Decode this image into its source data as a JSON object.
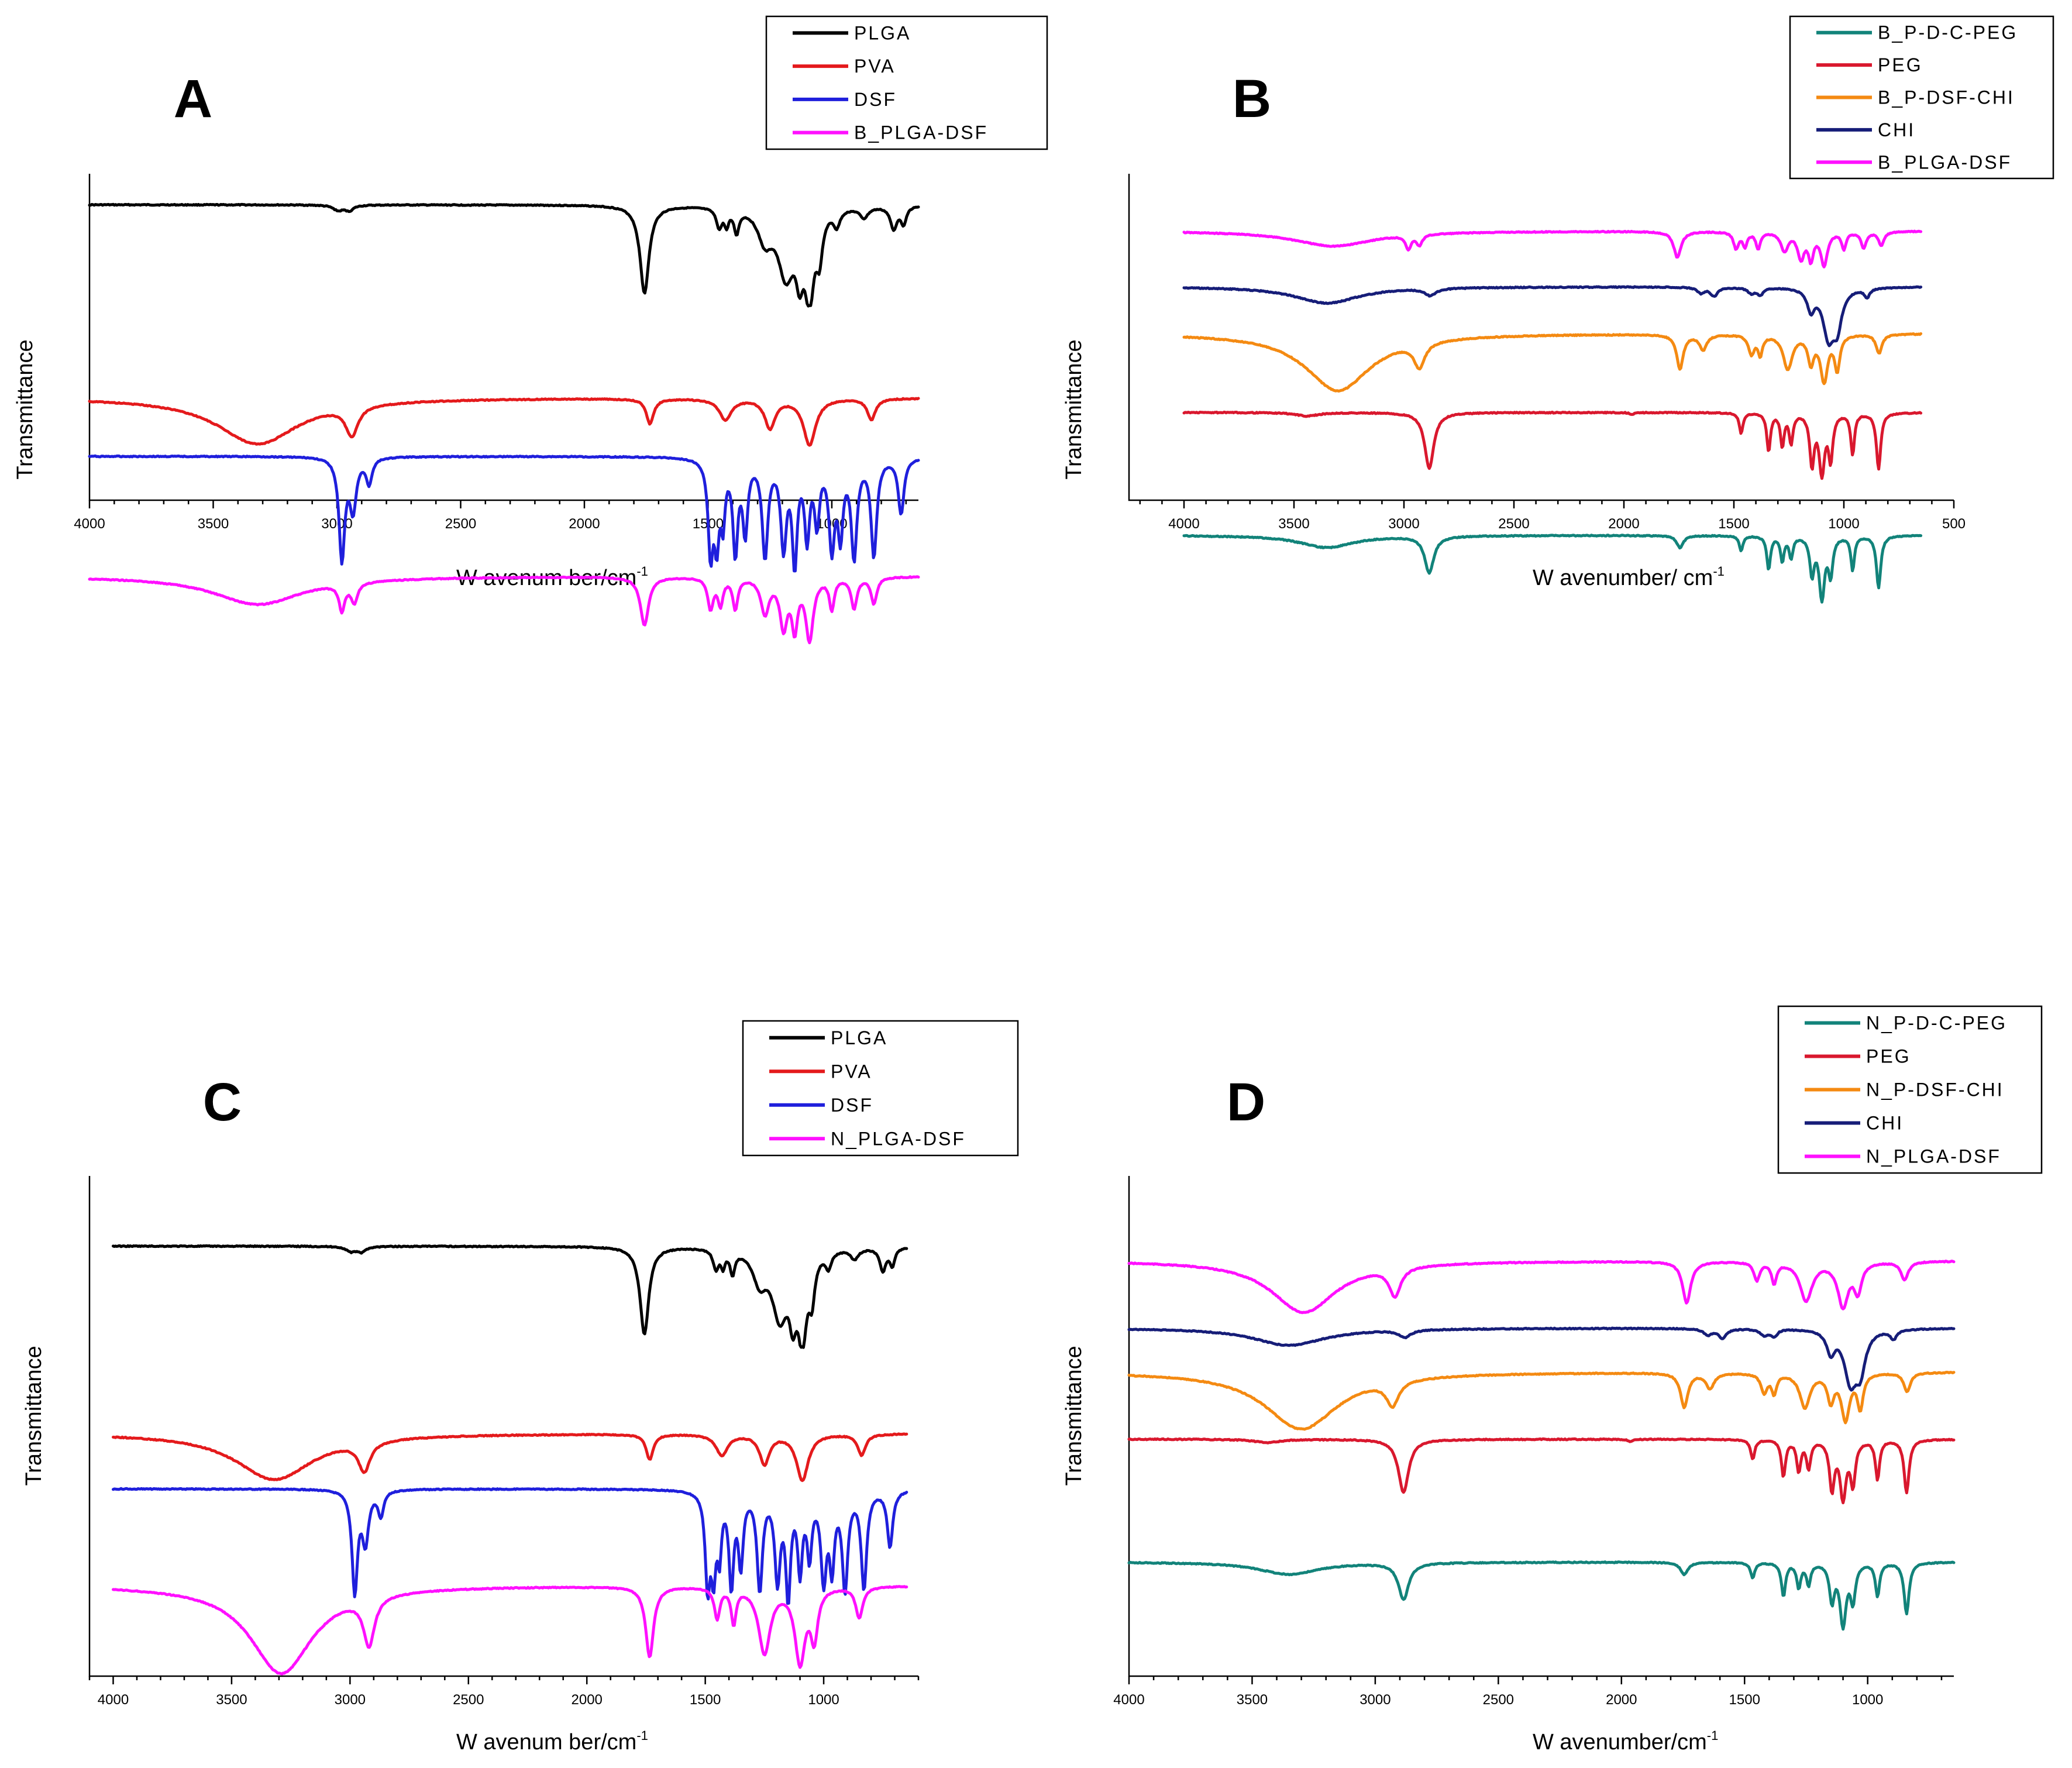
{
  "chart_data": [
    {
      "panel": "A",
      "type": "line",
      "xlabel": "W avenum ber/cm",
      "xlabel_sup": "-1",
      "ylabel": "Transmittance",
      "xlim": [
        4000,
        650
      ],
      "reversed_x": true,
      "xticks": [
        4000,
        3500,
        3000,
        2500,
        2000,
        1500,
        1000
      ],
      "legend": {
        "position": "top-right"
      },
      "series": [
        {
          "name": "PLGA",
          "color": "#000000",
          "key": "PLGA"
        },
        {
          "name": "PVA",
          "color": "#e41a1c",
          "key": "PVA"
        },
        {
          "name": "DSF",
          "color": "#1f1fdc",
          "key": "DSF"
        },
        {
          "name": "B_PLGA-DSF",
          "color": "#ff10ff",
          "key": "PLGADSF"
        }
      ]
    },
    {
      "panel": "B",
      "type": "line",
      "xlabel": "W avenumber/ cm",
      "xlabel_sup": "-1",
      "ylabel": "Transmittance",
      "xlim": [
        4250,
        500
      ],
      "reversed_x": true,
      "xticks": [
        4000,
        3500,
        3000,
        2500,
        2000,
        1500,
        1000,
        500
      ],
      "legend": {
        "position": "top-right"
      },
      "series": [
        {
          "name": "B_P-D-C-PEG",
          "color": "#12837a",
          "key": "PDCPEG"
        },
        {
          "name": "PEG",
          "color": "#d9182e",
          "key": "PEG"
        },
        {
          "name": "B_P-DSF-CHI",
          "color": "#f48a12",
          "key": "PDSFCHI"
        },
        {
          "name": "CHI",
          "color": "#161d78",
          "key": "CHI"
        },
        {
          "name": "B_PLGA-DSF",
          "color": "#ff10ff",
          "key": "PLGADSF"
        }
      ]
    },
    {
      "panel": "C",
      "type": "line",
      "xlabel": "W avenum ber/cm",
      "xlabel_sup": "-1",
      "ylabel": "Transmittance",
      "xlim": [
        4100,
        600
      ],
      "reversed_x": true,
      "xticks": [
        4000,
        3500,
        3000,
        2500,
        2000,
        1500,
        1000
      ],
      "legend": {
        "position": "top-right"
      },
      "series": [
        {
          "name": "PLGA",
          "color": "#000000",
          "key": "PLGA"
        },
        {
          "name": "PVA",
          "color": "#e41a1c",
          "key": "PVA"
        },
        {
          "name": "DSF",
          "color": "#1f1fdc",
          "key": "DSF"
        },
        {
          "name": "N_PLGA-DSF",
          "color": "#ff10ff",
          "key": "PLGADSF_N"
        }
      ]
    },
    {
      "panel": "D",
      "type": "line",
      "xlabel": "W avenumber/cm",
      "xlabel_sup": "-1",
      "ylabel": "Transmittance",
      "xlim": [
        4000,
        650
      ],
      "reversed_x": true,
      "xticks": [
        4000,
        3500,
        3000,
        2500,
        2000,
        1500,
        1000
      ],
      "legend": {
        "position": "top-right"
      },
      "series": [
        {
          "name": "N_P-D-C-PEG",
          "color": "#12837a",
          "key": "PDCPEG"
        },
        {
          "name": "PEG",
          "color": "#d9182e",
          "key": "PEG"
        },
        {
          "name": "N_P-DSF-CHI",
          "color": "#f48a12",
          "key": "PDSFCHI"
        },
        {
          "name": "CHI",
          "color": "#161d78",
          "key": "CHI"
        },
        {
          "name": "N_PLGA-DSF",
          "color": "#ff10ff",
          "key": "PLGADSF_N"
        }
      ]
    }
  ]
}
